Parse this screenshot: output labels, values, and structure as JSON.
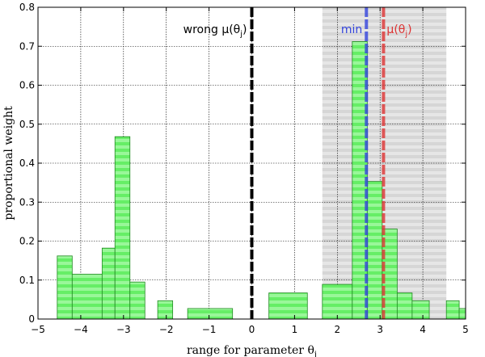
{
  "chart_data": {
    "type": "bar",
    "xlabel": "range for parameter θ",
    "xlabel_sub": "j",
    "ylabel": "proportional weight",
    "xlim": [
      -5,
      5
    ],
    "ylim": [
      0,
      0.8
    ],
    "grid": true,
    "xticks": [
      -5,
      -4,
      -3,
      -2,
      -1,
      0,
      1,
      2,
      3,
      4,
      5
    ],
    "xtick_labels": [
      "−5",
      "−4",
      "−3",
      "−2",
      "−1",
      "0",
      "1",
      "2",
      "3",
      "4",
      "5"
    ],
    "yticks": [
      0,
      0.1,
      0.2,
      0.3,
      0.4,
      0.5,
      0.6,
      0.7,
      0.8
    ],
    "ytick_labels": [
      "0",
      "0.1",
      "0.2",
      "0.3",
      "0.4",
      "0.5",
      "0.6",
      "0.7",
      "0.8"
    ],
    "bins": [
      {
        "x0": -4.55,
        "x1": -4.2,
        "value": 0.162
      },
      {
        "x0": -4.2,
        "x1": -3.5,
        "value": 0.115
      },
      {
        "x0": -3.5,
        "x1": -3.2,
        "value": 0.182
      },
      {
        "x0": -3.2,
        "x1": -2.85,
        "value": 0.468
      },
      {
        "x0": -2.85,
        "x1": -2.5,
        "value": 0.095
      },
      {
        "x0": -2.2,
        "x1": -1.85,
        "value": 0.047
      },
      {
        "x0": -1.5,
        "x1": -0.45,
        "value": 0.027
      },
      {
        "x0": 0.4,
        "x1": 1.3,
        "value": 0.067
      },
      {
        "x0": 1.65,
        "x1": 2.35,
        "value": 0.089
      },
      {
        "x0": 2.35,
        "x1": 2.7,
        "value": 0.712
      },
      {
        "x0": 2.7,
        "x1": 3.05,
        "value": 0.353
      },
      {
        "x0": 3.05,
        "x1": 3.4,
        "value": 0.231
      },
      {
        "x0": 3.4,
        "x1": 3.75,
        "value": 0.067
      },
      {
        "x0": 3.75,
        "x1": 4.15,
        "value": 0.047
      },
      {
        "x0": 4.55,
        "x1": 4.85,
        "value": 0.047
      },
      {
        "x0": 4.85,
        "x1": 5.0,
        "value": 0.027
      }
    ],
    "shaded_region": {
      "x0": 1.65,
      "x1": 4.55,
      "color": "#d9d9d9"
    },
    "vlines": [
      {
        "x": 0.0,
        "color": "#000000",
        "label": "wrong μ(θ",
        "label_sub": "j",
        "label_end": ")",
        "label_color": "#000000"
      },
      {
        "x": 2.68,
        "color": "#3344dd",
        "label": "min",
        "label_sub": "",
        "label_end": "",
        "label_color": "#3344dd"
      },
      {
        "x": 3.08,
        "color": "#dd3333",
        "label": "μ(θ",
        "label_sub": "j",
        "label_end": ")",
        "label_color": "#dd3333"
      }
    ],
    "bar_color": "#66ee66",
    "bar_stripe_color": "#aaffaa",
    "bar_edge": "#228822"
  }
}
